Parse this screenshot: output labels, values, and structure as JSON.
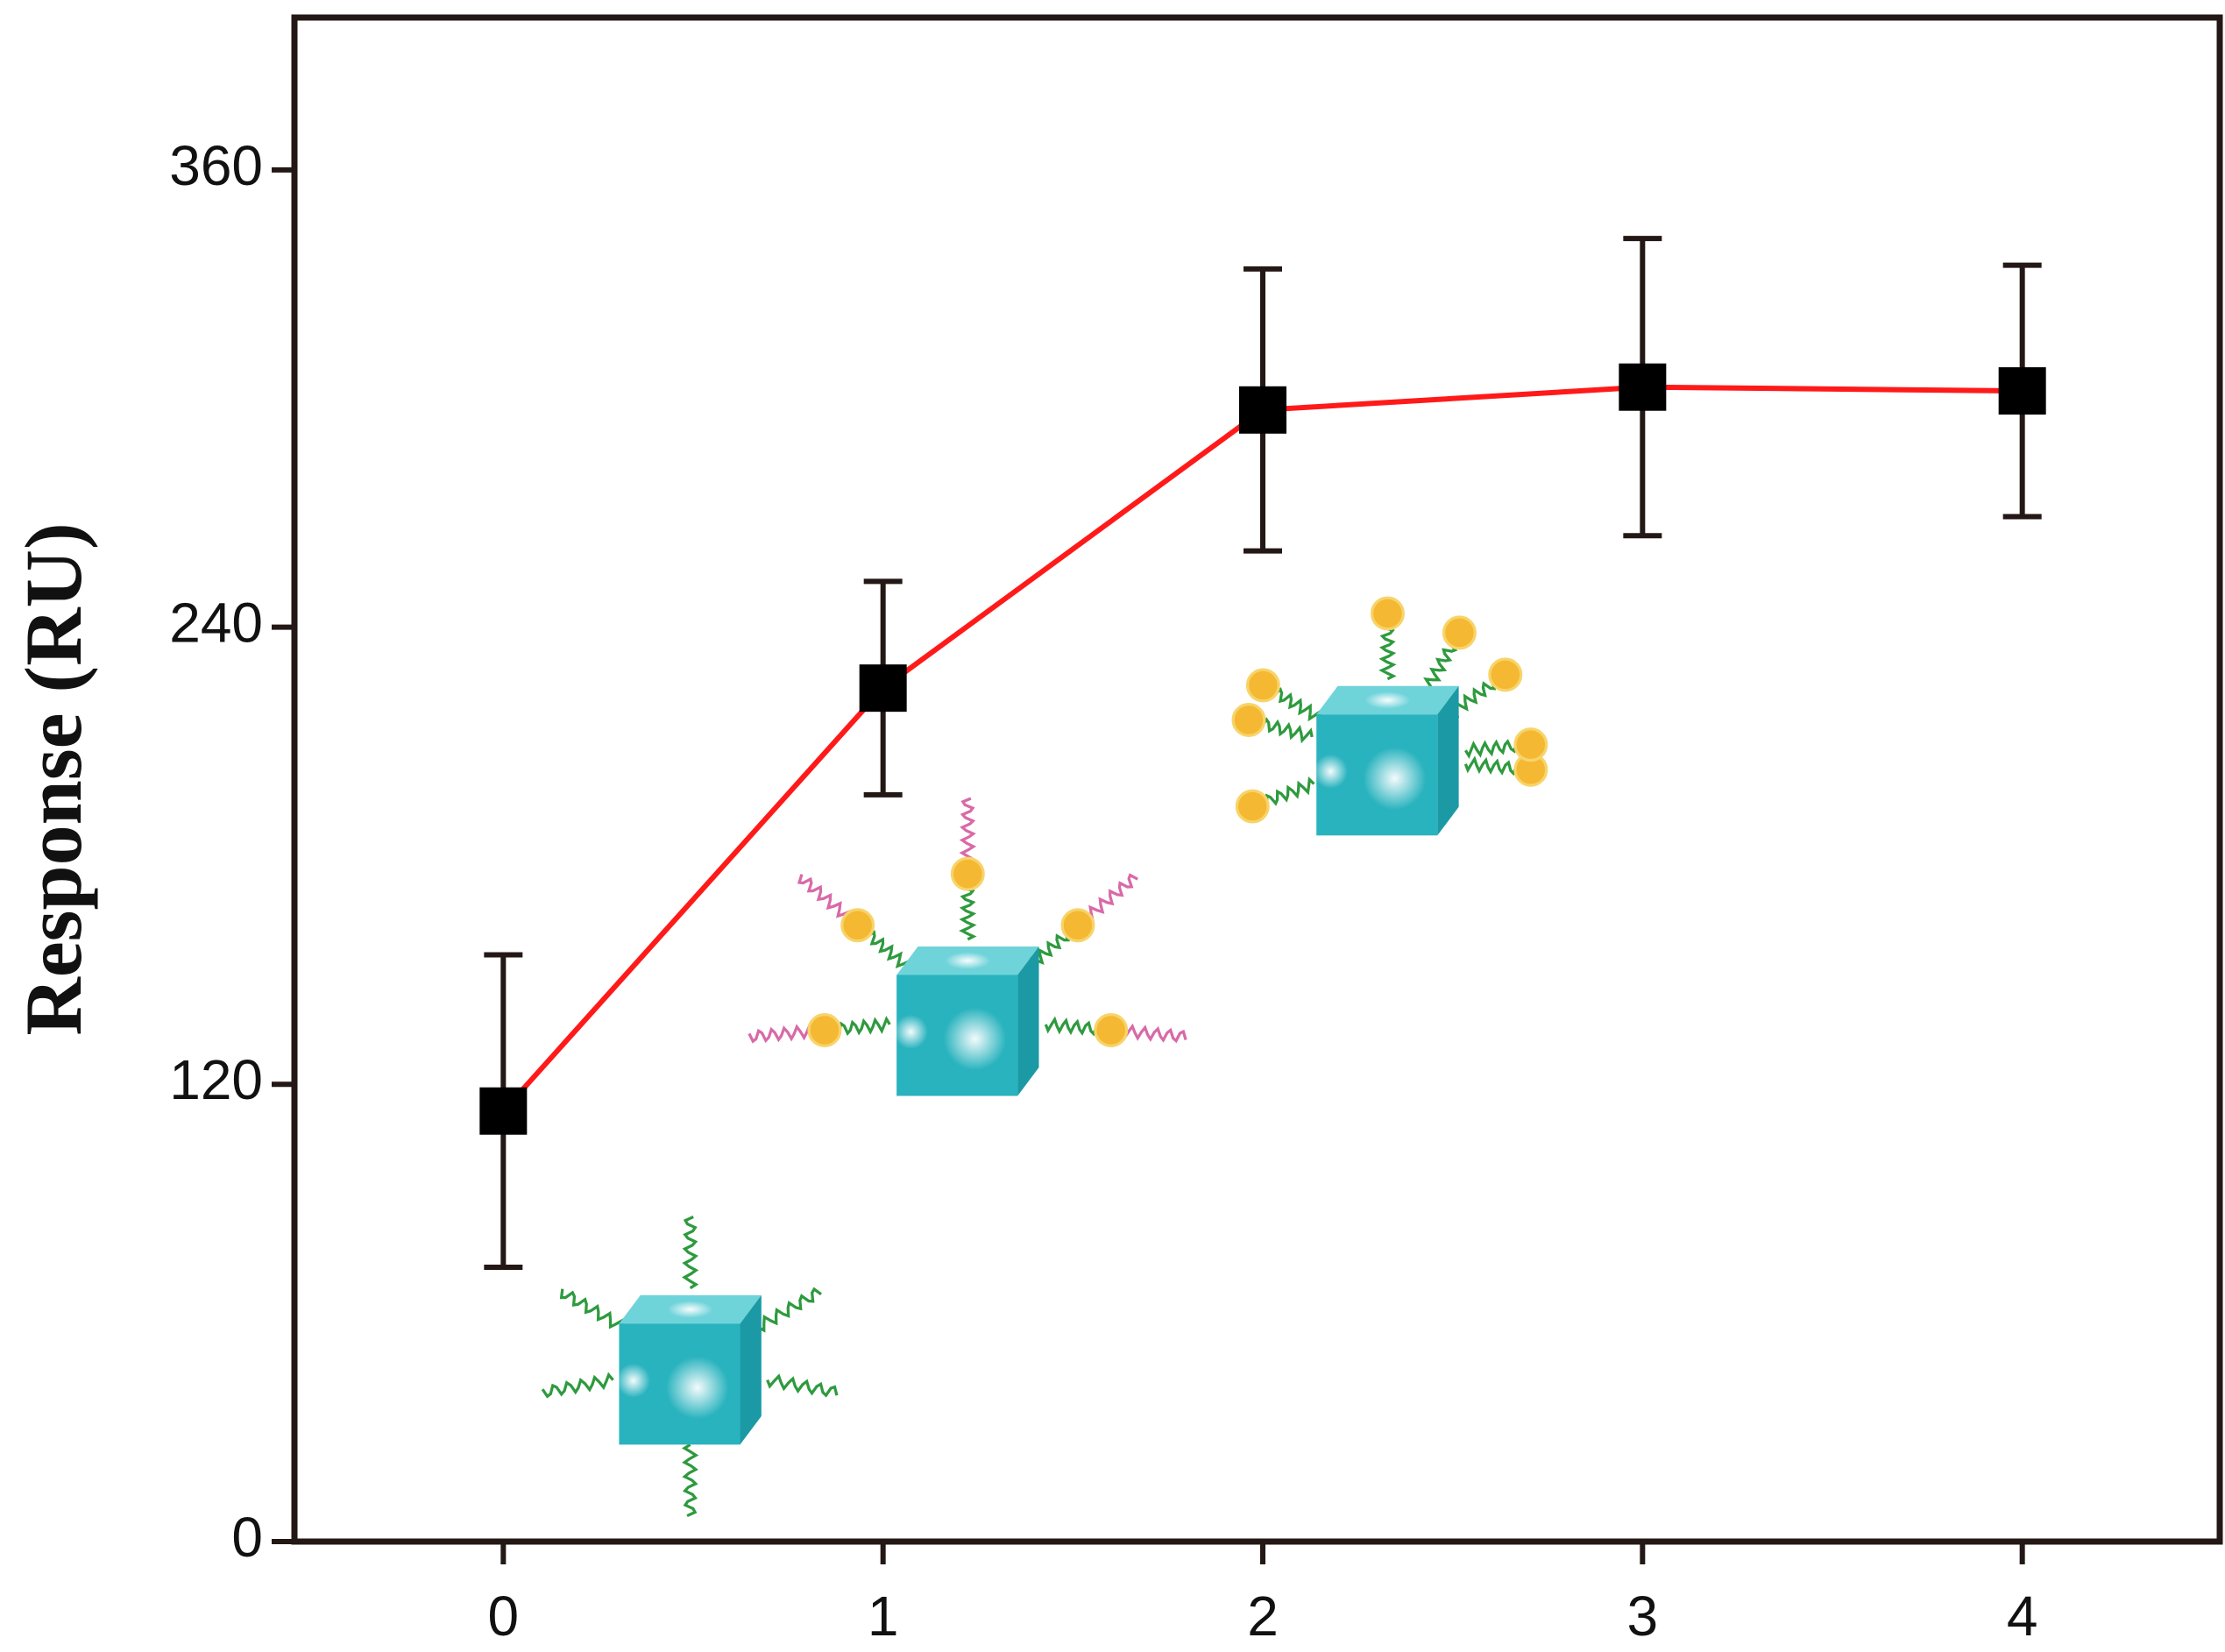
{
  "chart_data": {
    "type": "line",
    "y_label": "Response (RU)",
    "x": [
      0,
      1,
      2,
      3,
      4
    ],
    "series": [
      {
        "values": [
          113,
          224,
          297,
          303,
          302
        ],
        "errors": [
          41,
          28,
          37,
          39,
          33
        ],
        "color": "#ff1a1a",
        "marker_color": "#000000"
      }
    ],
    "xlim": [
      -0.55,
      4.52
    ],
    "xticks": [
      0,
      1,
      2,
      3,
      4
    ],
    "ylim": [
      0,
      400
    ],
    "yticks": [
      0,
      120,
      240,
      360
    ],
    "grid": false
  }
}
